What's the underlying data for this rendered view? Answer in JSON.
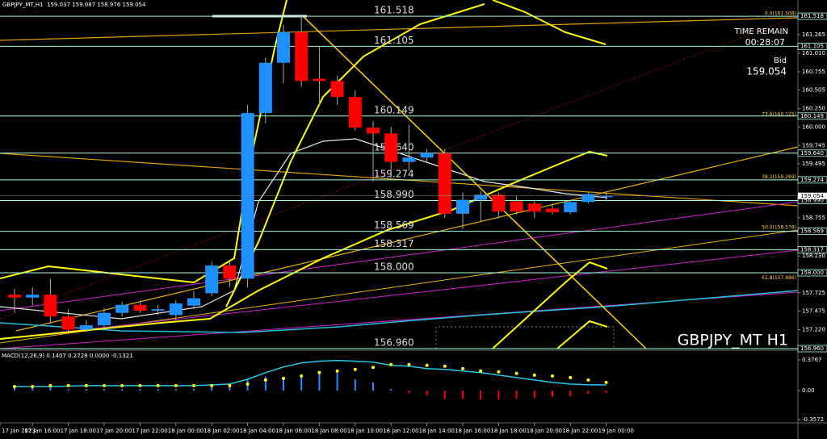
{
  "header": {
    "symbol": "GBPJPY_MT,H1",
    "ohlc": "159.037 159.087 158.976 159.054"
  },
  "timer": {
    "label": "TIME REMAIN",
    "value": "00:28:07"
  },
  "bid": {
    "label": "Bid",
    "value": 159.054
  },
  "watermark": "GBPJPY_MT H1",
  "chart_data": [
    {
      "type": "candlestick",
      "up_color": "#1e90ff",
      "down_color": "#ff0000",
      "level_color": "#9fffe0",
      "ylim": [
        156.96,
        161.74
      ],
      "yticks": [
        161.265,
        {
          "value": 161.01,
          "label": "161.010"
        },
        160.755,
        160.505,
        {
          "value": 160.25,
          "label": "160.250"
        },
        {
          "value": 160,
          "label": "160.000"
        },
        159.745,
        159.495,
        158.755,
        {
          "value": 158.23,
          "label": "158.230"
        },
        157.725,
        157.475,
        {
          "value": 157.22,
          "label": "157.220"
        }
      ],
      "open": [
        157.7,
        157.66,
        157.7,
        157.4,
        157.22,
        157.28,
        157.45,
        157.56,
        157.48,
        157.42,
        157.55,
        157.72,
        158.1,
        157.92,
        160.19,
        160.88,
        161.3,
        160.66,
        160.63,
        160.41,
        159.99,
        159.91,
        159.52,
        159.58,
        159.64,
        158.81,
        159.0,
        159.07,
        158.98,
        158.95,
        158.88,
        158.83,
        158.97,
        159.037
      ],
      "high": [
        157.78,
        157.8,
        157.92,
        157.5,
        157.35,
        157.52,
        157.6,
        157.62,
        157.56,
        157.62,
        157.75,
        158.15,
        158.15,
        160.3,
        160.95,
        161.4,
        161.52,
        161.1,
        160.7,
        160.5,
        160.08,
        160.0,
        160.03,
        159.7,
        159.7,
        159.1,
        159.12,
        159.1,
        159.05,
        159.0,
        158.95,
        159.0,
        159.1,
        159.087
      ],
      "low": [
        157.45,
        157.55,
        157.3,
        157.2,
        157.18,
        157.22,
        157.4,
        157.45,
        157.42,
        157.35,
        157.5,
        157.68,
        157.8,
        157.8,
        160.05,
        160.6,
        160.55,
        160.3,
        160.3,
        159.95,
        159.25,
        159.3,
        159.4,
        159.5,
        158.75,
        158.6,
        158.7,
        158.75,
        158.8,
        158.75,
        158.8,
        158.8,
        158.95,
        158.976
      ],
      "close": [
        157.66,
        157.7,
        157.4,
        157.22,
        157.28,
        157.45,
        157.56,
        157.48,
        157.5,
        157.58,
        157.65,
        158.1,
        157.92,
        160.19,
        160.88,
        161.3,
        160.63,
        160.63,
        160.41,
        159.99,
        159.91,
        159.52,
        159.58,
        159.64,
        158.81,
        159.0,
        159.07,
        158.84,
        158.84,
        158.84,
        158.83,
        158.97,
        159.08,
        159.054
      ],
      "levels": [
        161.518,
        161.105,
        160.149,
        {
          "value": 159.64,
          "label": "159.640"
        },
        159.274,
        {
          "value": 158.99,
          "label": "158.990"
        },
        158.569,
        158.317,
        {
          "value": 158,
          "label": "158.000"
        },
        {
          "value": 156.96,
          "label": "156.960"
        }
      ],
      "fib": [
        {
          "label": "0.0(161.508)",
          "value": 161.508
        },
        {
          "label": "73.6(160.125)",
          "value": 160.125
        },
        {
          "label": "38.2(159.269)",
          "value": 159.269
        },
        {
          "label": "50.0(158.578)",
          "value": 158.578
        },
        {
          "label": "61.8(157.886)",
          "value": 157.886
        }
      ],
      "x_labels": [
        "17 Jan 2023",
        "17 Jan 16:00",
        "17 Jan 18:00",
        "17 Jan 20:00",
        "17 Jan 22:00",
        "18 Jan 00:00",
        "18 Jan 02:00",
        "18 Jan 04:00",
        "18 Jan 06:00",
        "18 Jan 08:00",
        "18 Jan 10:00",
        "18 Jan 12:00",
        "18 Jan 14:00",
        "18 Jan 16:00",
        "18 Jan 18:00",
        "18 Jan 20:00",
        "18 Jan 22:00",
        "19 Jan 00:00"
      ]
    },
    {
      "type": "macd",
      "title": "MACD(12,26,9) 0.1407 0.2728 0.0000 -0.1321",
      "ylim": [
        -0.3572,
        0.3767
      ],
      "yticks": [
        0.3767,
        {
          "value": 0,
          "label": "0.00"
        },
        -0.3572
      ],
      "pos_color": "#1e90ff",
      "neg_color": "#ff0000",
      "signal_color": "#ffff00",
      "line_color": "#22c8e8",
      "histogram": [
        0.06,
        0.05,
        0.04,
        0.02,
        0.02,
        0.02,
        0.02,
        0.02,
        0.02,
        0.02,
        0.02,
        0.04,
        0.04,
        0.14,
        0.17,
        0.14,
        0.17,
        0.24,
        0.22,
        0.14,
        0.1,
        0.02,
        -0.03,
        -0.06,
        -0.1,
        -0.1,
        -0.11,
        -0.11,
        -0.1,
        -0.09,
        -0.08,
        -0.07,
        -0.04,
        -0.03
      ],
      "signal": [
        0.05,
        0.05,
        0.06,
        0.06,
        0.06,
        0.06,
        0.06,
        0.06,
        0.06,
        0.06,
        0.06,
        0.06,
        0.06,
        0.08,
        0.13,
        0.15,
        0.18,
        0.22,
        0.24,
        0.26,
        0.285,
        0.32,
        0.32,
        0.31,
        0.3,
        0.27,
        0.24,
        0.23,
        0.21,
        0.19,
        0.18,
        0.16,
        0.13,
        0.1
      ],
      "line": [
        0.05,
        0.05,
        0.05,
        0.055,
        0.06,
        0.06,
        0.06,
        0.06,
        0.06,
        0.06,
        0.06,
        0.07,
        0.08,
        0.14,
        0.22,
        0.29,
        0.34,
        0.36,
        0.37,
        0.36,
        0.35,
        0.31,
        0.3,
        0.27,
        0.26,
        0.24,
        0.22,
        0.19,
        0.16,
        0.13,
        0.1,
        0.08,
        0.07,
        0.07
      ]
    }
  ]
}
